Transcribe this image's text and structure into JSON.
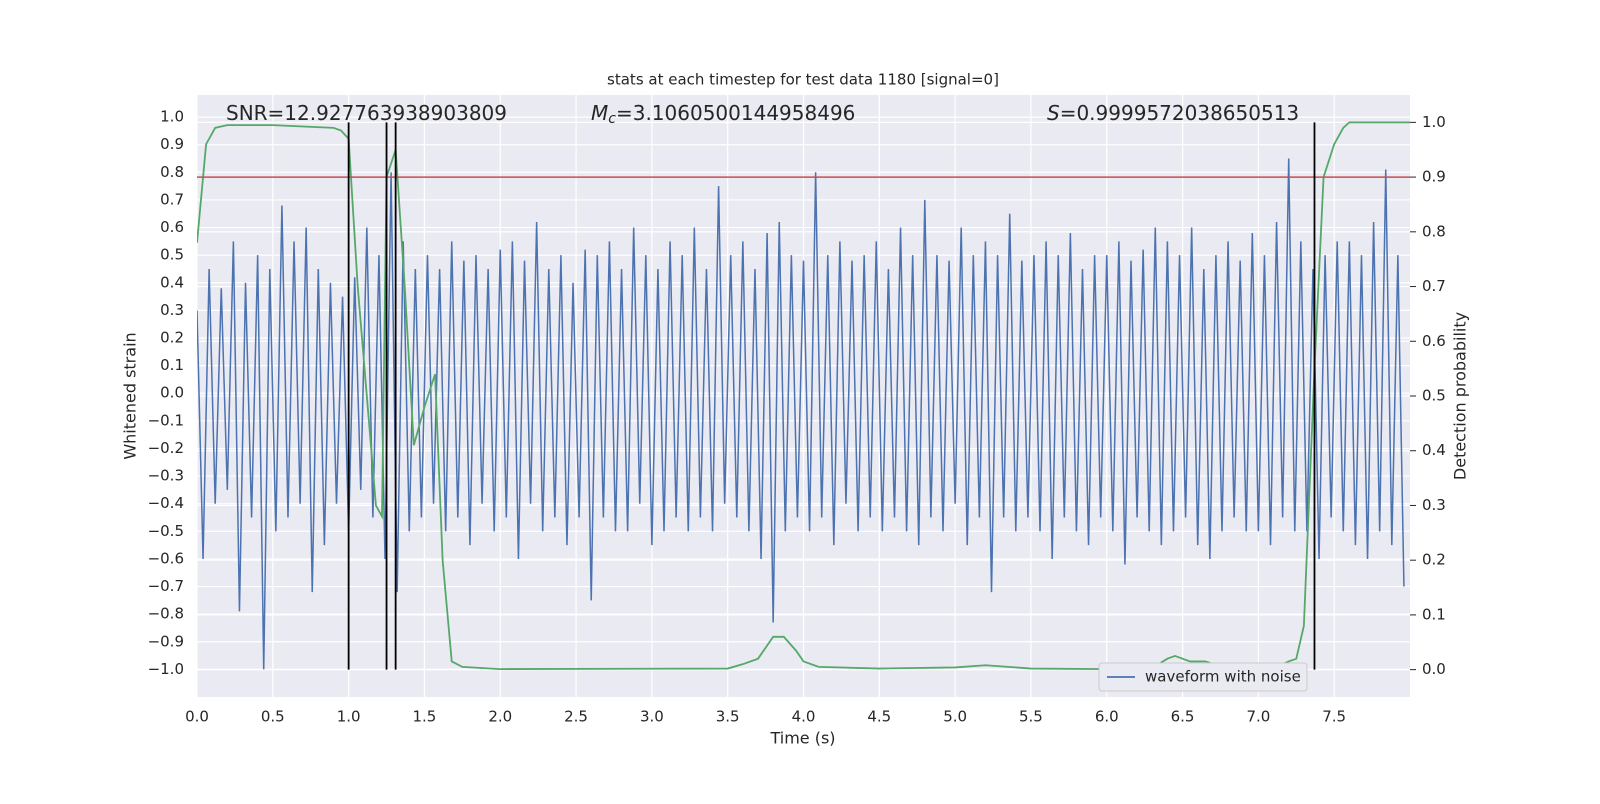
{
  "chart_data": {
    "type": "line",
    "title": "stats at each timestep for test data 1180 [signal=0]",
    "xlabel": "Time (s)",
    "ylabel": "Whitened strain",
    "y2label": "Detection probability",
    "annotations": [
      {
        "text": "SNR=12.927763938903809"
      },
      {
        "symbol": "M",
        "sub": "c",
        "text": "=3.1060500144958496"
      },
      {
        "symbol": "S",
        "text": "=0.9999572038650513"
      }
    ],
    "xlim": [
      0,
      8
    ],
    "ylim": [
      -1.1,
      1.08
    ],
    "y2lim": [
      -0.05,
      1.05
    ],
    "xticks": [
      {
        "value": 0,
        "label": "0.0"
      },
      0.5,
      {
        "value": 1,
        "label": "1.0"
      },
      1.5,
      {
        "value": 2,
        "label": "2.0"
      },
      2.5,
      {
        "value": 3,
        "label": "3.0"
      },
      3.5,
      {
        "value": 4,
        "label": "4.0"
      },
      4.5,
      {
        "value": 5,
        "label": "5.0"
      },
      5.5,
      {
        "value": 6,
        "label": "6.0"
      },
      6.5,
      {
        "value": 7,
        "label": "7.0"
      },
      7.5
    ],
    "yticks": [
      {
        "value": -1,
        "label": "−1.0"
      },
      {
        "value": -0.9,
        "label": "−0.9"
      },
      {
        "value": -0.8,
        "label": "−0.8"
      },
      {
        "value": -0.7,
        "label": "−0.7"
      },
      {
        "value": -0.6,
        "label": "−0.6"
      },
      {
        "value": -0.5,
        "label": "−0.5"
      },
      {
        "value": -0.4,
        "label": "−0.4"
      },
      {
        "value": -0.3,
        "label": "−0.3"
      },
      {
        "value": -0.2,
        "label": "−0.2"
      },
      {
        "value": -0.1,
        "label": "−0.1"
      },
      {
        "value": 0,
        "label": "0.0"
      },
      0.1,
      0.2,
      0.3,
      0.4,
      0.5,
      0.6,
      0.7,
      0.8,
      0.9,
      {
        "value": 1,
        "label": "1.0"
      }
    ],
    "y2ticks": [
      {
        "value": 0,
        "label": "0.0"
      },
      0.1,
      0.2,
      0.3,
      0.4,
      0.5,
      0.6,
      0.7,
      0.8,
      0.9,
      {
        "value": 1,
        "label": "1.0"
      }
    ],
    "grid": true,
    "legend": "lower right",
    "threshold": {
      "value": 0.9,
      "axis": "y2",
      "color": "#c44e52"
    },
    "vlines": {
      "x": [
        1.0,
        1.25,
        1.31,
        7.37
      ],
      "range": [
        0,
        1
      ],
      "axis": "y2",
      "color": "#000000"
    },
    "series": [
      {
        "name": "waveform with noise",
        "color": "#4c72b0",
        "x": [
          0,
          0.04,
          0.08,
          0.12,
          0.16,
          0.2,
          0.24,
          0.28,
          0.32,
          0.36,
          0.4,
          0.44,
          0.48,
          0.52,
          0.56,
          0.6,
          0.64,
          0.68,
          0.72,
          0.76,
          0.8,
          0.84,
          0.88,
          0.92,
          0.96,
          1,
          1.04,
          1.08,
          1.12,
          1.16,
          1.2,
          1.24,
          1.28,
          1.32,
          1.36,
          1.4,
          1.44,
          1.48,
          1.52,
          1.56,
          1.6,
          1.64,
          1.68,
          1.72,
          1.76,
          1.8,
          1.84,
          1.88,
          1.92,
          1.96,
          2,
          2.04,
          2.08,
          2.12,
          2.16,
          2.2,
          2.24,
          2.28,
          2.32,
          2.36,
          2.4,
          2.44,
          2.48,
          2.52,
          2.56,
          2.6,
          2.64,
          2.68,
          2.72,
          2.76,
          2.8,
          2.84,
          2.88,
          2.92,
          2.96,
          3,
          3.04,
          3.08,
          3.12,
          3.16,
          3.2,
          3.24,
          3.28,
          3.32,
          3.36,
          3.4,
          3.44,
          3.48,
          3.52,
          3.56,
          3.6,
          3.64,
          3.68,
          3.72,
          3.76,
          3.8,
          3.84,
          3.88,
          3.92,
          3.96,
          4,
          4.04,
          4.08,
          4.12,
          4.16,
          4.2,
          4.24,
          4.28,
          4.32,
          4.36,
          4.4,
          4.44,
          4.48,
          4.52,
          4.56,
          4.6,
          4.64,
          4.68,
          4.72,
          4.76,
          4.8,
          4.84,
          4.88,
          4.92,
          4.96,
          5,
          5.04,
          5.08,
          5.12,
          5.16,
          5.2,
          5.24,
          5.28,
          5.32,
          5.36,
          5.4,
          5.44,
          5.48,
          5.52,
          5.56,
          5.6,
          5.64,
          5.68,
          5.72,
          5.76,
          5.8,
          5.84,
          5.88,
          5.92,
          5.96,
          6,
          6.04,
          6.08,
          6.12,
          6.16,
          6.2,
          6.24,
          6.28,
          6.32,
          6.36,
          6.4,
          6.44,
          6.48,
          6.52,
          6.56,
          6.6,
          6.64,
          6.68,
          6.72,
          6.76,
          6.8,
          6.84,
          6.88,
          6.92,
          6.96,
          7,
          7.04,
          7.08,
          7.12,
          7.16,
          7.2,
          7.24,
          7.28,
          7.32,
          7.36,
          7.4,
          7.44,
          7.48,
          7.52,
          7.56,
          7.6,
          7.64,
          7.68,
          7.72,
          7.76,
          7.8,
          7.84,
          7.88,
          7.92,
          7.96
        ],
        "values": [
          0.3,
          -0.6,
          0.45,
          -0.4,
          0.38,
          -0.35,
          0.55,
          -0.79,
          0.4,
          -0.45,
          0.5,
          -1.0,
          0.45,
          -0.5,
          0.68,
          -0.45,
          0.55,
          -0.4,
          0.6,
          -0.72,
          0.45,
          -0.55,
          0.4,
          -0.4,
          0.35,
          -0.5,
          0.42,
          -0.35,
          0.6,
          -0.45,
          0.5,
          -0.6,
          0.8,
          -0.72,
          0.55,
          -0.5,
          0.45,
          -0.45,
          0.5,
          -0.4,
          0.45,
          -0.5,
          0.55,
          -0.45,
          0.48,
          -0.55,
          0.5,
          -0.4,
          0.45,
          -0.5,
          0.52,
          -0.45,
          0.55,
          -0.6,
          0.48,
          -0.4,
          0.62,
          -0.5,
          0.45,
          -0.45,
          0.5,
          -0.55,
          0.4,
          -0.45,
          0.52,
          -0.75,
          0.5,
          -0.45,
          0.55,
          -0.5,
          0.45,
          -0.5,
          0.6,
          -0.4,
          0.5,
          -0.55,
          0.45,
          -0.5,
          0.55,
          -0.45,
          0.5,
          -0.5,
          0.6,
          -0.45,
          0.45,
          -0.5,
          0.75,
          -0.4,
          0.5,
          -0.45,
          0.55,
          -0.5,
          0.45,
          -0.6,
          0.58,
          -0.83,
          0.62,
          -0.5,
          0.5,
          -0.45,
          0.48,
          -0.5,
          0.8,
          -0.45,
          0.5,
          -0.55,
          0.55,
          -0.4,
          0.48,
          -0.5,
          0.5,
          -0.45,
          0.55,
          -0.5,
          0.45,
          -0.45,
          0.6,
          -0.5,
          0.5,
          -0.55,
          0.7,
          -0.45,
          0.5,
          -0.5,
          0.48,
          -0.4,
          0.6,
          -0.55,
          0.5,
          -0.45,
          0.55,
          -0.72,
          0.5,
          -0.45,
          0.65,
          -0.5,
          0.48,
          -0.45,
          0.5,
          -0.5,
          0.55,
          -0.6,
          0.5,
          -0.45,
          0.58,
          -0.5,
          0.45,
          -0.55,
          0.5,
          -0.45,
          0.5,
          -0.5,
          0.55,
          -0.62,
          0.48,
          -0.45,
          0.52,
          -0.5,
          0.6,
          -0.55,
          0.55,
          -0.5,
          0.5,
          -0.45,
          0.6,
          -0.55,
          0.45,
          -0.6,
          0.5,
          -0.5,
          0.55,
          -0.45,
          0.48,
          -0.5,
          0.58,
          -0.5,
          0.5,
          -0.55,
          0.62,
          -0.45,
          0.85,
          -0.5,
          0.55,
          -0.5,
          0.45,
          -0.6,
          0.5,
          -0.45,
          0.55,
          -0.5,
          0.55,
          -0.55,
          0.5,
          -0.6,
          0.62,
          -0.5,
          0.81,
          -0.55,
          0.5,
          -0.7
        ]
      },
      {
        "color": "#55a868",
        "axis": "y2",
        "x": [
          0,
          0.06,
          0.12,
          0.2,
          0.5,
          0.9,
          0.95,
          1.0,
          1.06,
          1.12,
          1.18,
          1.22,
          1.25,
          1.31,
          1.37,
          1.43,
          1.5,
          1.57,
          1.62,
          1.68,
          1.75,
          2.0,
          3.5,
          3.6,
          3.7,
          3.75,
          3.8,
          3.87,
          3.95,
          4.0,
          4.1,
          4.5,
          5.0,
          5.2,
          5.5,
          6.0,
          6.3,
          6.4,
          6.45,
          6.55,
          6.65,
          6.75,
          6.9,
          7.1,
          7.2,
          7.25,
          7.3,
          7.37,
          7.43,
          7.5,
          7.56,
          7.6,
          8.0
        ],
        "values": [
          0.78,
          0.96,
          0.99,
          0.995,
          0.995,
          0.99,
          0.985,
          0.97,
          0.7,
          0.5,
          0.3,
          0.28,
          0.9,
          0.95,
          0.7,
          0.41,
          0.48,
          0.54,
          0.2,
          0.015,
          0.005,
          0.001,
          0.002,
          0.01,
          0.02,
          0.04,
          0.06,
          0.06,
          0.035,
          0.015,
          0.005,
          0.002,
          0.004,
          0.008,
          0.002,
          0.001,
          0.003,
          0.02,
          0.025,
          0.015,
          0.015,
          0.006,
          0.002,
          0.003,
          0.015,
          0.02,
          0.08,
          0.55,
          0.9,
          0.96,
          0.99,
          1.0,
          1.0
        ]
      }
    ]
  }
}
